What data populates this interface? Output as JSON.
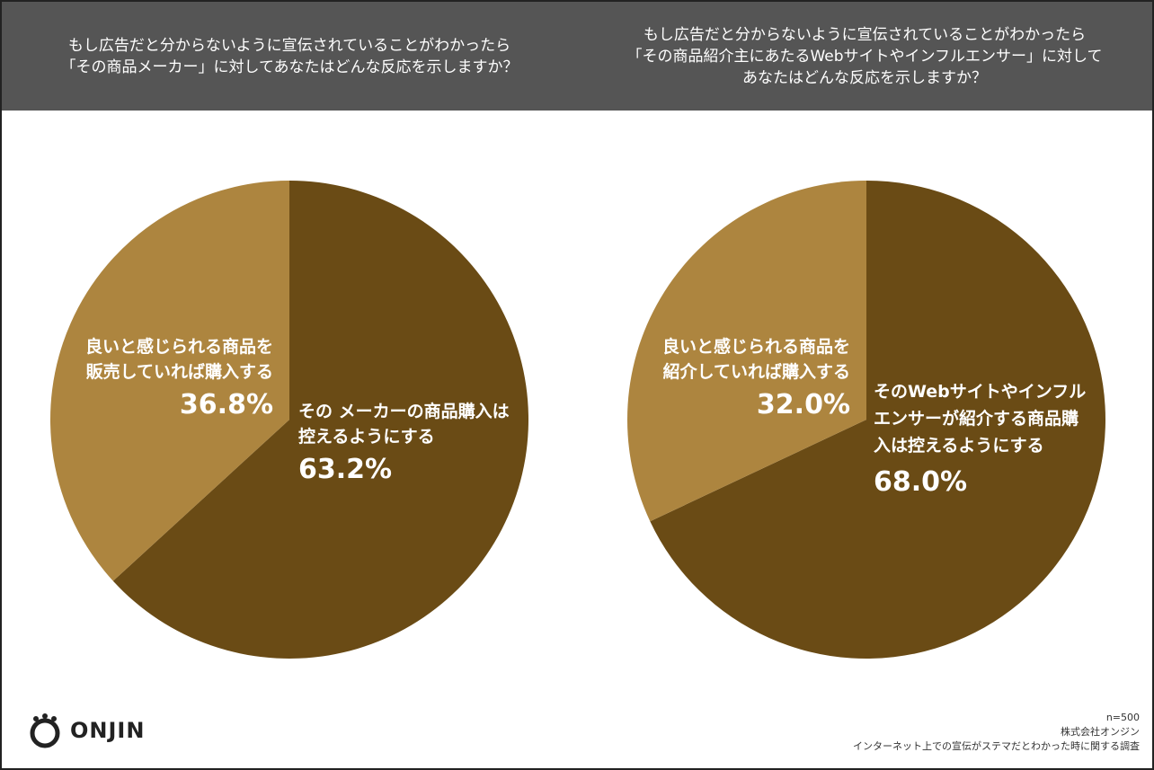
{
  "header": {
    "left_question_lines": [
      "もし広告だと分からないように宣伝されていることがわかったら",
      "「その商品メーカー」に対してあなたはどんな反応を示しますか？"
    ],
    "right_question_lines": [
      "もし広告だと分からないように宣伝されていることがわかったら",
      "「その商品紹介主にあたるWebサイトやインフルエンサー」に対して",
      "あなたはどんな反応を示しますか？"
    ]
  },
  "colors": {
    "dark": "#6a4b15",
    "light": "#ad853f",
    "header_bg": "#555555"
  },
  "chart_data": [
    {
      "type": "pie",
      "slices": [
        {
          "label_lines": [
            "その メーカーの商品購入は",
            "控えるようにする"
          ],
          "value": 63.2,
          "value_label": "63.2%",
          "color": "#6a4b15"
        },
        {
          "label_lines": [
            "良いと感じられる商品を",
            "販売していれば購入する"
          ],
          "value": 36.8,
          "value_label": "36.8%",
          "color": "#ad853f"
        }
      ]
    },
    {
      "type": "pie",
      "slices": [
        {
          "label_lines": [
            "そのWebサイトやインフル",
            "エンサーが紹介する商品購",
            "入は控えるようにする"
          ],
          "value": 68.0,
          "value_label": "68.0%",
          "color": "#6a4b15"
        },
        {
          "label_lines": [
            "良いと感じられる商品を",
            "紹介していれば購入する"
          ],
          "value": 32.0,
          "value_label": "32.0%",
          "color": "#ad853f"
        }
      ]
    }
  ],
  "logo": {
    "text": "ONJIN"
  },
  "footer": {
    "lines": [
      "n=500",
      "株式会社オンジン",
      "インターネット上での宣伝がステマだとわかった時に関する調査"
    ]
  }
}
